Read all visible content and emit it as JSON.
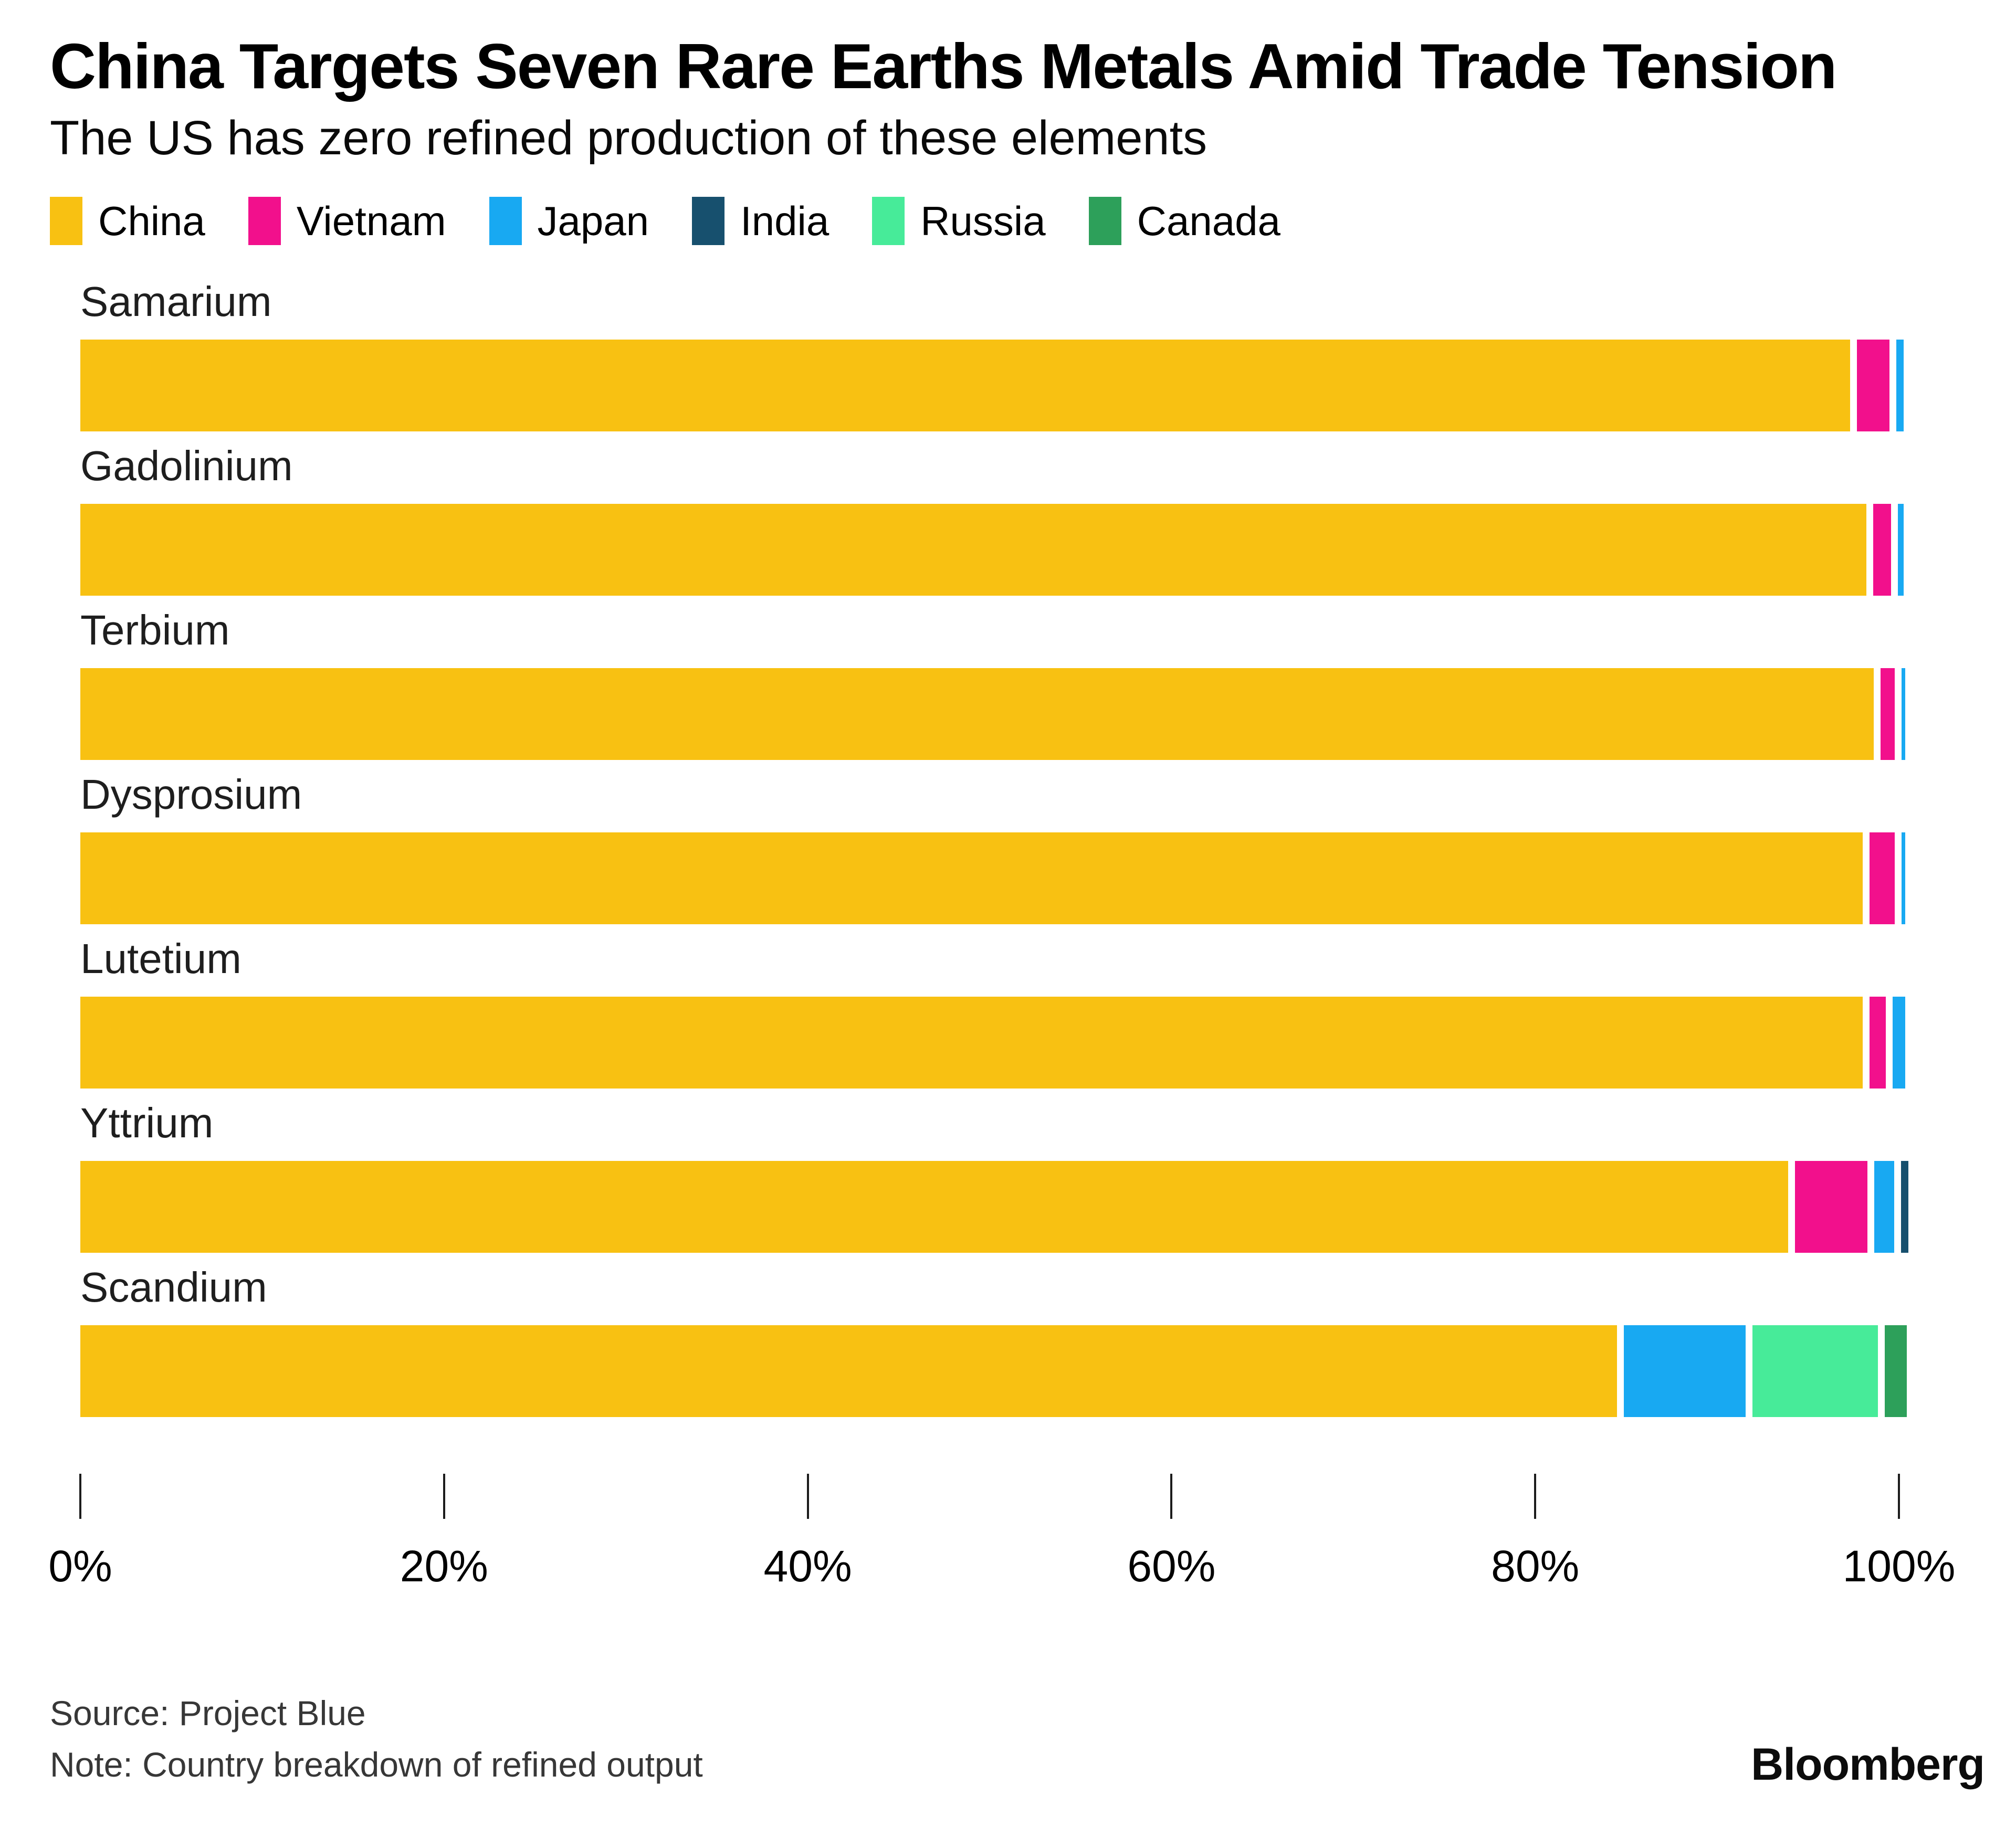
{
  "header": {
    "title": "China Targets Seven Rare Earths Metals Amid Trade Tension",
    "subtitle": "The US has zero refined production of these elements"
  },
  "legend": [
    {
      "label": "China",
      "color": "#F8C112"
    },
    {
      "label": "Vietnam",
      "color": "#F2108C"
    },
    {
      "label": "Japan",
      "color": "#18A9F2"
    },
    {
      "label": "India",
      "color": "#17506E"
    },
    {
      "label": "Russia",
      "color": "#47EB99"
    },
    {
      "label": "Canada",
      "color": "#2DA05A"
    }
  ],
  "chart_data": {
    "type": "bar",
    "stacked": true,
    "orientation": "horizontal",
    "unit": "percent share of refined output",
    "title": "China Targets Seven Rare Earths Metals Amid Trade Tension",
    "subtitle": "The US has zero refined production of these elements",
    "categories": [
      "Samarium",
      "Gadolinium",
      "Terbium",
      "Dysprosium",
      "Lutetium",
      "Yttrium",
      "Scandium"
    ],
    "series_order": [
      "China",
      "Vietnam",
      "Japan",
      "India",
      "Russia",
      "Canada"
    ],
    "colors": {
      "China": "#F8C112",
      "Vietnam": "#F2108C",
      "Japan": "#18A9F2",
      "India": "#17506E",
      "Russia": "#47EB99",
      "Canada": "#2DA05A"
    },
    "rows": [
      {
        "label": "Samarium",
        "segments": [
          {
            "country": "China",
            "value": 97.3
          },
          {
            "country": "Vietnam",
            "value": 1.8
          },
          {
            "country": "Japan",
            "value": 0.4
          }
        ]
      },
      {
        "label": "Gadolinium",
        "segments": [
          {
            "country": "China",
            "value": 98.2
          },
          {
            "country": "Vietnam",
            "value": 1.0
          },
          {
            "country": "Japan",
            "value": 0.3
          }
        ]
      },
      {
        "label": "Terbium",
        "segments": [
          {
            "country": "China",
            "value": 98.6
          },
          {
            "country": "Vietnam",
            "value": 0.8
          },
          {
            "country": "Japan",
            "value": 0.2
          }
        ]
      },
      {
        "label": "Dysprosium",
        "segments": [
          {
            "country": "China",
            "value": 98.0
          },
          {
            "country": "Vietnam",
            "value": 1.4
          },
          {
            "country": "Japan",
            "value": 0.2
          }
        ]
      },
      {
        "label": "Lutetium",
        "segments": [
          {
            "country": "China",
            "value": 98.0
          },
          {
            "country": "Vietnam",
            "value": 0.9
          },
          {
            "country": "Japan",
            "value": 0.7
          }
        ]
      },
      {
        "label": "Yttrium",
        "segments": [
          {
            "country": "China",
            "value": 93.9
          },
          {
            "country": "Vietnam",
            "value": 4.0
          },
          {
            "country": "Japan",
            "value": 1.1
          },
          {
            "country": "India",
            "value": 0.4
          }
        ]
      },
      {
        "label": "Scandium",
        "segments": [
          {
            "country": "China",
            "value": 84.5
          },
          {
            "country": "Japan",
            "value": 6.7
          },
          {
            "country": "Russia",
            "value": 6.9
          },
          {
            "country": "Canada",
            "value": 1.2
          }
        ]
      }
    ],
    "xlim": [
      0,
      100
    ],
    "x_ticks": [
      "0%",
      "20%",
      "40%",
      "60%",
      "80%",
      "100%"
    ],
    "grid": false,
    "legend_position": "top"
  },
  "footer": {
    "source": "Source: Project Blue",
    "note": "Note: Country breakdown of refined output",
    "brand": "Bloomberg"
  }
}
